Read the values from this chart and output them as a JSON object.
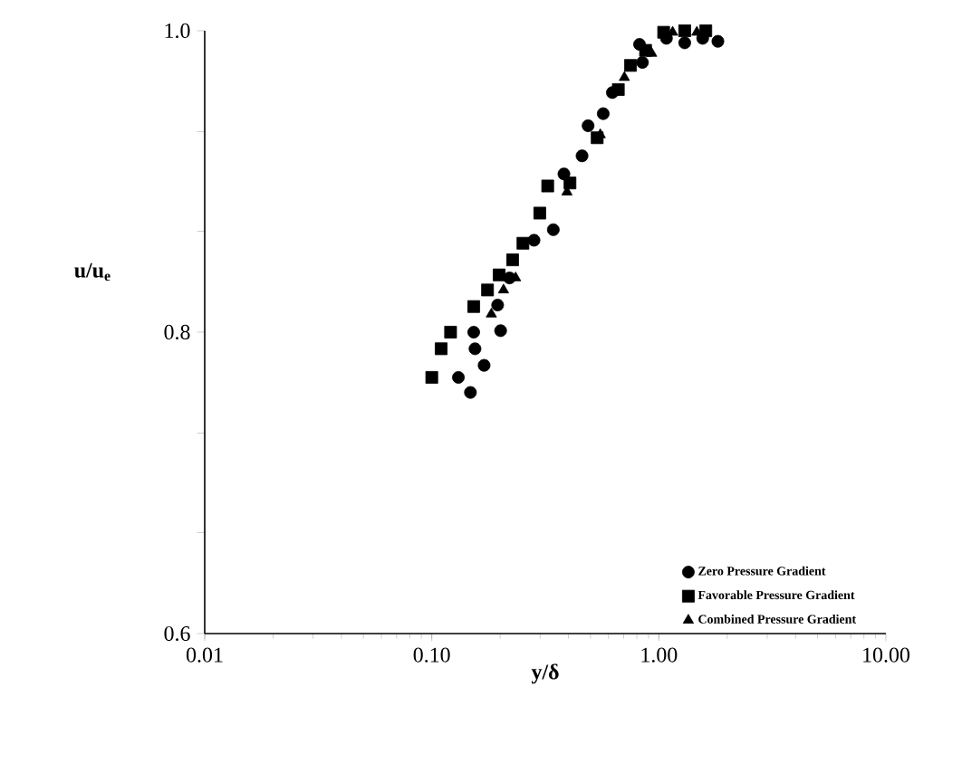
{
  "chart_data": {
    "type": "scatter",
    "xlabel": "y/δ",
    "ylabel": "u/u$_{e}$",
    "log": "x",
    "legend": "bottom right",
    "xlim": [
      0.01,
      10
    ],
    "ylim": [
      0.6,
      1.0
    ],
    "xticks": [
      {
        "value": 0.01,
        "label": "0.01"
      },
      {
        "value": 0.1,
        "label": "0.10"
      },
      {
        "value": 1,
        "label": "1.00"
      },
      {
        "value": 10,
        "label": "10.00"
      }
    ],
    "yticks": [
      {
        "value": 0.6,
        "label": "0.6"
      },
      {
        "value": 0.667,
        "label": null
      },
      {
        "value": 0.733,
        "label": null
      },
      {
        "value": 0.8,
        "label": "0.8"
      },
      {
        "value": 0.867,
        "label": null
      },
      {
        "value": 0.933,
        "label": null
      },
      {
        "value": 1.0,
        "label": "1.0"
      }
    ],
    "series": [
      {
        "name": "Zero Pressure Gradient",
        "color": "#000000",
        "marker": "circle",
        "x": [
          0.131,
          0.148,
          0.153,
          0.155,
          0.17,
          0.201,
          0.195,
          0.22,
          0.268,
          0.282,
          0.343,
          0.382,
          0.459,
          0.488,
          0.569,
          0.624,
          0.847,
          0.822,
          1.08,
          1.3,
          1.82,
          1.56
        ],
        "values": [
          0.77,
          0.76,
          0.8,
          0.789,
          0.778,
          0.801,
          0.818,
          0.836,
          null,
          0.861,
          0.868,
          0.905,
          0.917,
          0.937,
          0.945,
          0.959,
          0.979,
          0.991,
          0.995,
          0.992,
          0.993,
          0.995
        ]
      },
      {
        "name": "Favorable Pressure Gradient",
        "color": "#000000",
        "marker": "square",
        "x": [
          0.1,
          0.11,
          0.121,
          0.153,
          0.176,
          0.198,
          0.227,
          0.252,
          0.299,
          0.324,
          0.406,
          0.535,
          0.663,
          0.75,
          0.874,
          1.05,
          1.3,
          1.61
        ],
        "values": [
          0.77,
          0.789,
          0.8,
          0.817,
          0.828,
          0.838,
          0.848,
          0.859,
          0.879,
          0.897,
          0.899,
          0.929,
          0.961,
          0.977,
          0.987,
          0.999,
          1.0,
          1.0
        ]
      },
      {
        "name": "Combined Pressure Gradient",
        "color": "#000000",
        "marker": "triangle",
        "x": [
          0.183,
          0.207,
          0.234,
          0.394,
          0.552,
          0.705,
          0.93,
          1.15,
          1.47
        ],
        "values": [
          0.812,
          0.828,
          0.836,
          0.893,
          0.931,
          0.969,
          0.985,
          0.999,
          0.999
        ]
      }
    ]
  }
}
